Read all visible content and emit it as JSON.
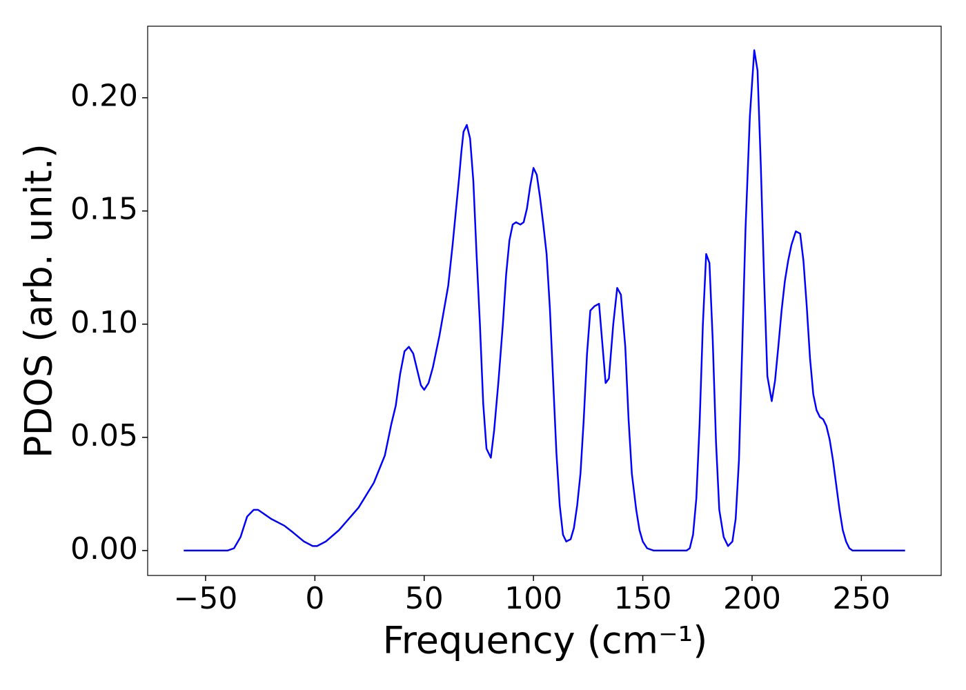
{
  "chart_data": {
    "type": "line",
    "xlabel": "Frequency (cm⁻¹)",
    "ylabel": "PDOS (arb. unit.)",
    "x": [
      -60,
      -40,
      -37,
      -34,
      -31,
      -28,
      -26,
      -20,
      -14,
      -10,
      -5,
      -1,
      1,
      5,
      11,
      20,
      27,
      32,
      35,
      37,
      39,
      41,
      43,
      45,
      47,
      48.5,
      50,
      52,
      54,
      57,
      59,
      61,
      63,
      64.5,
      66,
      67,
      68,
      69.5,
      71,
      72.5,
      74,
      75.5,
      77,
      78.5,
      80.5,
      82,
      84,
      86,
      87.5,
      89,
      90.5,
      92,
      94,
      95.5,
      97,
      98.5,
      100,
      101.5,
      103,
      104.5,
      106,
      107.5,
      109,
      110.5,
      112,
      113.5,
      115,
      117,
      118.5,
      120,
      121.5,
      123,
      124.5,
      126,
      128,
      130,
      133,
      134.5,
      136.5,
      138.3,
      140,
      142,
      143.5,
      145,
      147,
      148.5,
      150,
      152,
      155,
      170,
      171.5,
      173,
      174.5,
      176,
      177.5,
      179,
      180.5,
      182,
      183.5,
      185,
      187,
      189,
      191,
      192.5,
      194,
      195.5,
      197,
      199,
      201,
      202.5,
      204,
      205.5,
      207,
      209,
      210.5,
      212,
      213.5,
      215,
      216.5,
      218,
      220,
      222,
      223.5,
      225,
      226.5,
      228,
      229.5,
      231,
      232.5,
      234,
      235.5,
      237,
      238.5,
      240,
      241.5,
      243,
      244.5,
      246,
      270
    ],
    "series": [
      {
        "name": "PDOS",
        "color": "#0000ff",
        "values": [
          0,
          0,
          0.001,
          0.006,
          0.015,
          0.018,
          0.018,
          0.014,
          0.011,
          0.008,
          0.004,
          0.002,
          0.002,
          0.004,
          0.009,
          0.019,
          0.03,
          0.042,
          0.056,
          0.064,
          0.078,
          0.088,
          0.09,
          0.087,
          0.079,
          0.073,
          0.071,
          0.074,
          0.081,
          0.095,
          0.106,
          0.117,
          0.135,
          0.15,
          0.165,
          0.176,
          0.185,
          0.188,
          0.182,
          0.163,
          0.13,
          0.1,
          0.065,
          0.045,
          0.041,
          0.053,
          0.075,
          0.1,
          0.122,
          0.137,
          0.144,
          0.145,
          0.144,
          0.145,
          0.151,
          0.161,
          0.169,
          0.166,
          0.156,
          0.144,
          0.131,
          0.107,
          0.075,
          0.043,
          0.02,
          0.007,
          0.004,
          0.005,
          0.01,
          0.02,
          0.034,
          0.058,
          0.087,
          0.106,
          0.108,
          0.109,
          0.074,
          0.076,
          0.1,
          0.116,
          0.113,
          0.09,
          0.058,
          0.034,
          0.018,
          0.009,
          0.004,
          0.001,
          0,
          0,
          0.001,
          0.007,
          0.023,
          0.056,
          0.1,
          0.131,
          0.127,
          0.093,
          0.048,
          0.018,
          0.006,
          0.002,
          0.004,
          0.014,
          0.04,
          0.09,
          0.142,
          0.192,
          0.221,
          0.212,
          0.17,
          0.12,
          0.077,
          0.066,
          0.075,
          0.09,
          0.106,
          0.119,
          0.128,
          0.135,
          0.141,
          0.14,
          0.128,
          0.108,
          0.085,
          0.069,
          0.062,
          0.059,
          0.058,
          0.055,
          0.049,
          0.04,
          0.029,
          0.018,
          0.009,
          0.004,
          0.001,
          0,
          0
        ]
      }
    ],
    "xlim": [
      -76.5,
      286.5
    ],
    "ylim": [
      -0.011,
      0.2316
    ],
    "xticks": [
      {
        "value": -50,
        "label": "−50"
      },
      0,
      50,
      100,
      150,
      200,
      250
    ],
    "yticks": [
      {
        "value": 0,
        "label": "0.00"
      },
      {
        "value": 0.05,
        "label": "0.05"
      },
      {
        "value": 0.1,
        "label": "0.10"
      },
      {
        "value": 0.15,
        "label": "0.15"
      },
      {
        "value": 0.2,
        "label": "0.20"
      }
    ],
    "grid": false
  }
}
